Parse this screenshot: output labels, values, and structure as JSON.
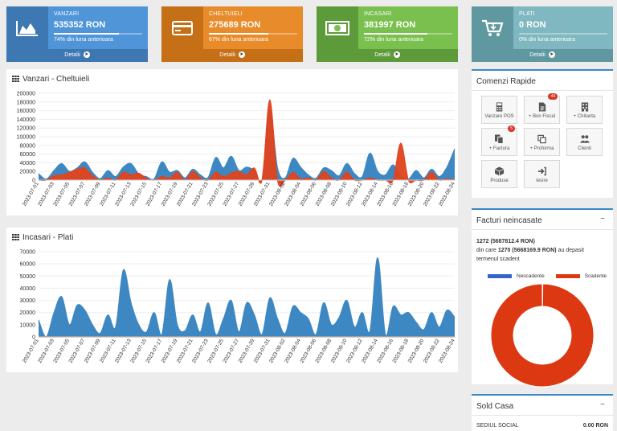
{
  "kpis": [
    {
      "title": "VANZARI",
      "value": "535352 RON",
      "sub": "74% din luna anterioara",
      "progress": 0.74,
      "footer": "Detalii",
      "color": "#4f95d8",
      "dark": "#3d78b3",
      "icon": "area-chart-icon"
    },
    {
      "title": "CHELTUIELI",
      "value": "275689 RON",
      "sub": "67% din luna anterioara",
      "progress": 0.67,
      "footer": "Detalii",
      "color": "#e88b2a",
      "dark": "#c56f16",
      "icon": "credit-card-icon"
    },
    {
      "title": "INCASARI",
      "value": "381997 RON",
      "sub": "72% din luna anterioara",
      "progress": 0.72,
      "footer": "Detalii",
      "color": "#7ac04e",
      "dark": "#5d9a39",
      "icon": "money-icon"
    },
    {
      "title": "PLATI",
      "value": "0 RON",
      "sub": "0% din luna anterioara",
      "progress": 0.0,
      "footer": "Detalii",
      "color": "#7fb8c0",
      "dark": "#5f98a0",
      "icon": "cart-icon"
    }
  ],
  "chart1": {
    "title": "Vanzari - Cheltuieli"
  },
  "chart2": {
    "title": "Incasari - Plati"
  },
  "quick": {
    "title": "Comenzi Rapide",
    "buttons": [
      {
        "label": "Vanzare POS",
        "icon": "calculator-icon",
        "badge": ""
      },
      {
        "label": "+ Bon Fiscal",
        "icon": "receipt-icon",
        "badge": "44"
      },
      {
        "label": "+ Chitanta",
        "icon": "building-icon",
        "badge": ""
      },
      {
        "label": "+ Factura",
        "icon": "invoice-icon",
        "badge": "5"
      },
      {
        "label": "+ Proforma",
        "icon": "copy-icon",
        "badge": ""
      },
      {
        "label": "Clienti",
        "icon": "users-icon",
        "badge": ""
      },
      {
        "label": "Produse",
        "icon": "cube-icon",
        "badge": ""
      },
      {
        "label": "Iesire",
        "icon": "sign-out-icon",
        "badge": ""
      }
    ]
  },
  "unpaid": {
    "title": "Facturi neincasate",
    "minus": "−",
    "line1": "1272 (5687812.4 RON)",
    "line2_prefix": "din care",
    "line2_bold": "1270 (5668169.9 RON)",
    "line2_suffix": "au depasit",
    "line3": "termenul scadent",
    "legend": [
      "Nescadente",
      "Scadente"
    ],
    "colors": {
      "nescadente": "#3366cc",
      "scadente": "#dc3912"
    }
  },
  "sold": {
    "title": "Sold Casa",
    "minus": "−",
    "label": "SEDIUL SOCIAL",
    "value": "0.00 RON"
  },
  "chart_data": [
    {
      "type": "area",
      "title": "Vanzari - Cheltuieli",
      "ylim": [
        0,
        200000
      ],
      "yticks": [
        0,
        20000,
        40000,
        60000,
        80000,
        100000,
        120000,
        140000,
        160000,
        180000,
        200000
      ],
      "x": [
        "2023-07-01",
        "2023-07-02",
        "2023-07-03",
        "2023-07-04",
        "2023-07-05",
        "2023-07-06",
        "2023-07-07",
        "2023-07-08",
        "2023-07-09",
        "2023-07-10",
        "2023-07-11",
        "2023-07-12",
        "2023-07-13",
        "2023-07-14",
        "2023-07-15",
        "2023-07-16",
        "2023-07-17",
        "2023-07-18",
        "2023-07-19",
        "2023-07-20",
        "2023-07-21",
        "2023-07-22",
        "2023-07-23",
        "2023-07-24",
        "2023-07-25",
        "2023-07-26",
        "2023-07-27",
        "2023-07-28",
        "2023-07-29",
        "2023-07-30",
        "2023-07-31",
        "2023-08-01",
        "2023-08-02",
        "2023-08-03",
        "2023-08-04",
        "2023-08-05",
        "2023-08-06",
        "2023-08-07",
        "2023-08-08",
        "2023-08-09",
        "2023-08-10",
        "2023-08-11",
        "2023-08-12",
        "2023-08-13",
        "2023-08-14",
        "2023-08-15",
        "2023-08-16",
        "2023-08-17",
        "2023-08-18",
        "2023-08-19",
        "2023-08-20",
        "2023-08-21",
        "2023-08-22",
        "2023-08-23",
        "2023-08-24"
      ],
      "xticks": [
        "2023-07-01",
        "2023-07-03",
        "2023-07-05",
        "2023-07-07",
        "2023-07-09",
        "2023-07-11",
        "2023-07-13",
        "2023-07-15",
        "2023-07-17",
        "2023-07-19",
        "2023-07-21",
        "2023-07-23",
        "2023-07-25",
        "2023-07-27",
        "2023-07-29",
        "2023-07-31",
        "2023-08-02",
        "2023-08-04",
        "2023-08-06",
        "2023-08-08",
        "2023-08-10",
        "2023-08-12",
        "2023-08-14",
        "2023-08-16",
        "2023-08-18",
        "2023-08-20",
        "2023-08-22",
        "2023-08-24"
      ],
      "series": [
        {
          "values": [
            15000,
            2000,
            22000,
            38000,
            20000,
            28000,
            42000,
            18000,
            3000,
            22000,
            8000,
            30000,
            38000,
            14000,
            8000,
            3000,
            42000,
            18000,
            22000,
            5000,
            25000,
            12000,
            6000,
            52000,
            28000,
            55000,
            22000,
            30000,
            22000,
            2000,
            160000,
            28000,
            5000,
            50000,
            30000,
            12000,
            4000,
            28000,
            22000,
            10000,
            38000,
            15000,
            8000,
            62000,
            20000,
            12000,
            35000,
            10000,
            2000,
            22000,
            5000,
            25000,
            8000,
            30000,
            72000
          ],
          "color": "#3d88c3"
        },
        {
          "values": [
            0,
            0,
            10000,
            12000,
            18000,
            25000,
            28000,
            10000,
            0,
            5000,
            0,
            18000,
            12000,
            16000,
            4000,
            0,
            8000,
            5000,
            18000,
            0,
            20000,
            5000,
            0,
            18000,
            8000,
            16000,
            20000,
            12000,
            28000,
            0,
            185000,
            0,
            0,
            18000,
            3000,
            5000,
            0,
            20000,
            5000,
            0,
            18000,
            0,
            0,
            5000,
            0,
            0,
            0,
            85000,
            0,
            0,
            0,
            18000,
            0,
            3000,
            0
          ],
          "color": "#e0431e"
        }
      ]
    },
    {
      "type": "area",
      "title": "Incasari - Plati",
      "ylim": [
        0,
        70000
      ],
      "yticks": [
        0,
        10000,
        20000,
        30000,
        40000,
        50000,
        60000,
        70000
      ],
      "x": [
        "2023-07-01",
        "2023-07-02",
        "2023-07-03",
        "2023-07-04",
        "2023-07-05",
        "2023-07-06",
        "2023-07-07",
        "2023-07-08",
        "2023-07-09",
        "2023-07-10",
        "2023-07-11",
        "2023-07-12",
        "2023-07-13",
        "2023-07-14",
        "2023-07-15",
        "2023-07-16",
        "2023-07-17",
        "2023-07-18",
        "2023-07-19",
        "2023-07-20",
        "2023-07-21",
        "2023-07-22",
        "2023-07-23",
        "2023-07-24",
        "2023-07-25",
        "2023-07-26",
        "2023-07-27",
        "2023-07-28",
        "2023-07-29",
        "2023-07-30",
        "2023-07-31",
        "2023-08-01",
        "2023-08-02",
        "2023-08-03",
        "2023-08-04",
        "2023-08-05",
        "2023-08-06",
        "2023-08-07",
        "2023-08-08",
        "2023-08-09",
        "2023-08-10",
        "2023-08-11",
        "2023-08-12",
        "2023-08-13",
        "2023-08-14",
        "2023-08-15",
        "2023-08-16",
        "2023-08-17",
        "2023-08-18",
        "2023-08-19",
        "2023-08-20",
        "2023-08-21",
        "2023-08-22",
        "2023-08-23",
        "2023-08-24"
      ],
      "xticks": [
        "2023-07-01",
        "2023-07-03",
        "2023-07-05",
        "2023-07-07",
        "2023-07-09",
        "2023-07-11",
        "2023-07-13",
        "2023-07-15",
        "2023-07-17",
        "2023-07-19",
        "2023-07-21",
        "2023-07-23",
        "2023-07-25",
        "2023-07-27",
        "2023-07-29",
        "2023-07-31",
        "2023-08-02",
        "2023-08-04",
        "2023-08-06",
        "2023-08-08",
        "2023-08-10",
        "2023-08-12",
        "2023-08-14",
        "2023-08-16",
        "2023-08-18",
        "2023-08-20",
        "2023-08-22",
        "2023-08-24"
      ],
      "series": [
        {
          "values": [
            14000,
            0,
            20000,
            33000,
            10000,
            26000,
            22000,
            10000,
            3000,
            18000,
            8000,
            55000,
            28000,
            10000,
            4000,
            20000,
            2000,
            47000,
            10000,
            5000,
            18000,
            4000,
            28000,
            2000,
            15000,
            30000,
            4000,
            28000,
            18000,
            2000,
            32000,
            15000,
            3000,
            25000,
            20000,
            15000,
            2000,
            28000,
            10000,
            16000,
            30000,
            8000,
            20000,
            5000,
            65000,
            2000,
            25000,
            18000,
            20000,
            12000,
            6000,
            20000,
            8000,
            22000,
            16000
          ],
          "color": "#3d88c3"
        },
        {
          "values": [
            0,
            0,
            0,
            0,
            0,
            0,
            0,
            0,
            0,
            0,
            0,
            0,
            0,
            0,
            0,
            0,
            0,
            0,
            0,
            0,
            0,
            0,
            0,
            0,
            0,
            0,
            0,
            0,
            0,
            0,
            0,
            0,
            0,
            0,
            0,
            0,
            0,
            0,
            0,
            0,
            0,
            0,
            0,
            0,
            0,
            0,
            0,
            0,
            0,
            0,
            0,
            0,
            0,
            0,
            0
          ],
          "color": "#e0431e"
        }
      ]
    },
    {
      "type": "pie",
      "title": "",
      "categories": [
        "Nescadente",
        "Scadente"
      ],
      "values": [
        2,
        1270
      ],
      "colors": [
        "#3366cc",
        "#dc3912"
      ],
      "donut": true
    }
  ]
}
